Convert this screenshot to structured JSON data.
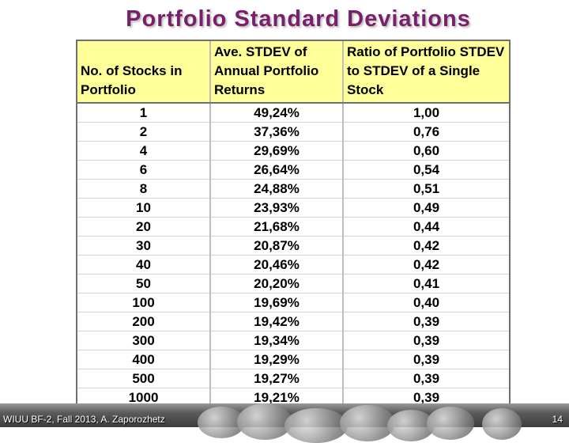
{
  "title": "Portfolio Standard Deviations",
  "table": {
    "headers": [
      "No. of Stocks in Portfolio",
      "Ave. STDEV of Annual Portfolio Returns",
      "Ratio of Portfolio STDEV to STDEV of a Single Stock"
    ],
    "rows": [
      [
        "1",
        "49,24%",
        "1,00"
      ],
      [
        "2",
        "37,36%",
        "0,76"
      ],
      [
        "4",
        "29,69%",
        "0,60"
      ],
      [
        "6",
        "26,64%",
        "0,54"
      ],
      [
        "8",
        "24,88%",
        "0,51"
      ],
      [
        "10",
        "23,93%",
        "0,49"
      ],
      [
        "20",
        "21,68%",
        "0,44"
      ],
      [
        "30",
        "20,87%",
        "0,42"
      ],
      [
        "40",
        "20,46%",
        "0,42"
      ],
      [
        "50",
        "20,20%",
        "0,41"
      ],
      [
        "100",
        "19,69%",
        "0,40"
      ],
      [
        "200",
        "19,42%",
        "0,39"
      ],
      [
        "300",
        "19,34%",
        "0,39"
      ],
      [
        "400",
        "19,29%",
        "0,39"
      ],
      [
        "500",
        "19,27%",
        "0,39"
      ],
      [
        "1000",
        "19,21%",
        "0,39"
      ]
    ]
  },
  "footer": {
    "text": "WIUU BF-2, Fall 2013, A. Zaporozhetz",
    "page_number": "14"
  },
  "colors": {
    "title": "#7a1f6a",
    "header_fill": "#ffff99"
  }
}
